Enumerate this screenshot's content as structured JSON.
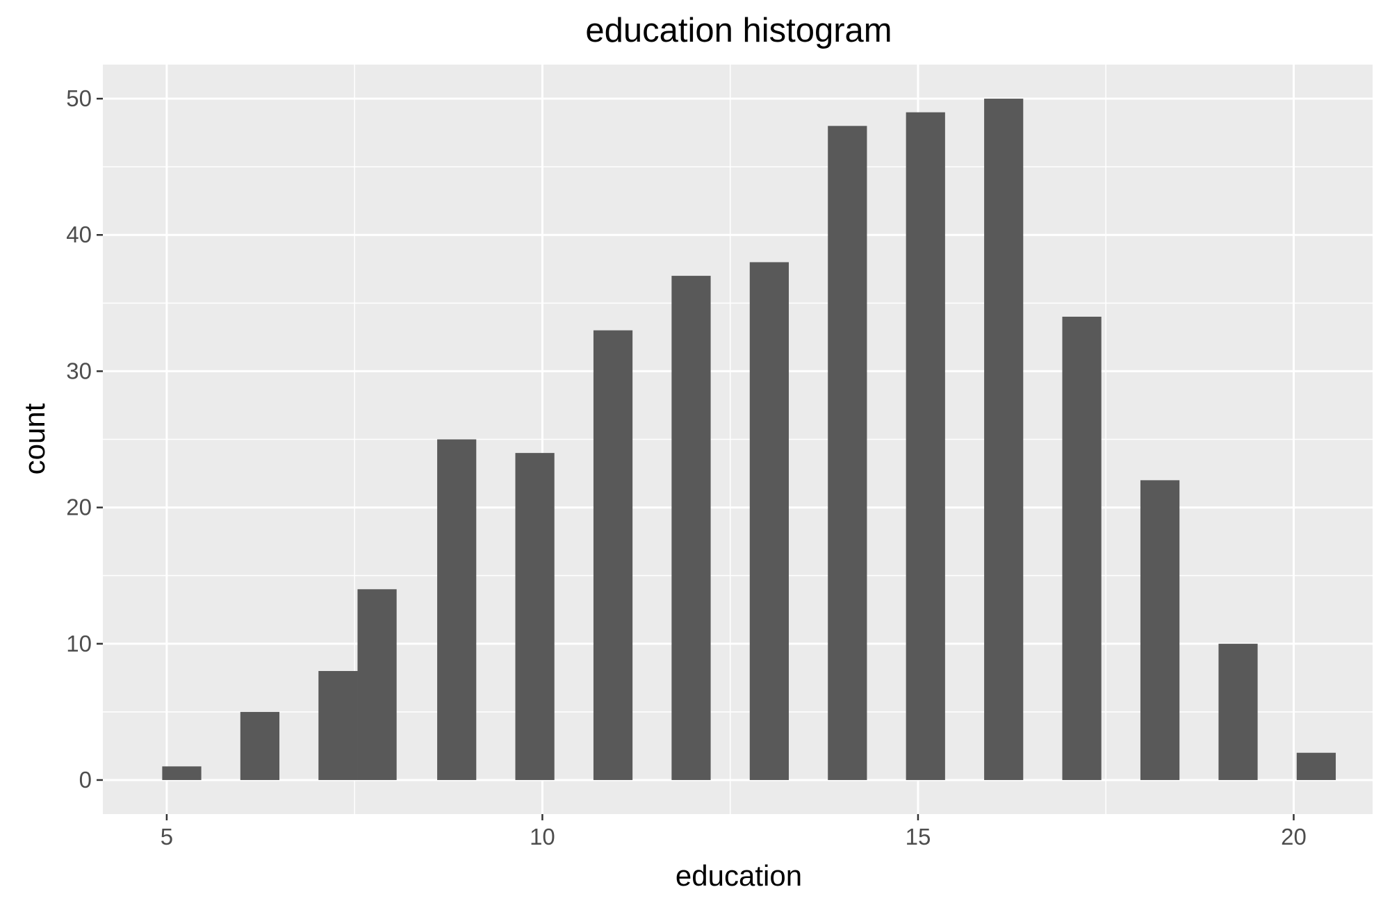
{
  "chart_data": {
    "type": "bar",
    "title": "education histogram",
    "xlabel": "education",
    "ylabel": "count",
    "x": [
      5.2,
      6.24,
      7.28,
      7.8,
      8.86,
      9.9,
      10.94,
      11.98,
      13.02,
      14.06,
      15.1,
      16.14,
      17.18,
      18.22,
      19.26,
      20.3
    ],
    "values": [
      1,
      5,
      8,
      14,
      25,
      24,
      33,
      37,
      38,
      48,
      49,
      50,
      34,
      22,
      10,
      2
    ],
    "bin_width": 0.52,
    "xlim": [
      4.15,
      21.05
    ],
    "ylim": [
      -2.5,
      52.5
    ],
    "x_ticks": [
      5,
      10,
      15,
      20
    ],
    "x_tick_labels": [
      "5",
      "10",
      "15",
      "20"
    ],
    "y_ticks": [
      0,
      10,
      20,
      30,
      40,
      50
    ],
    "y_tick_labels": [
      "0",
      "10",
      "20",
      "30",
      "40",
      "50"
    ],
    "grid": true,
    "colors": {
      "panel_background": "#ebebeb",
      "grid": "#ffffff",
      "bar": "#595959",
      "tick_label": "#4d4d4d",
      "tick_mark": "#333333",
      "text": "#000000"
    }
  }
}
